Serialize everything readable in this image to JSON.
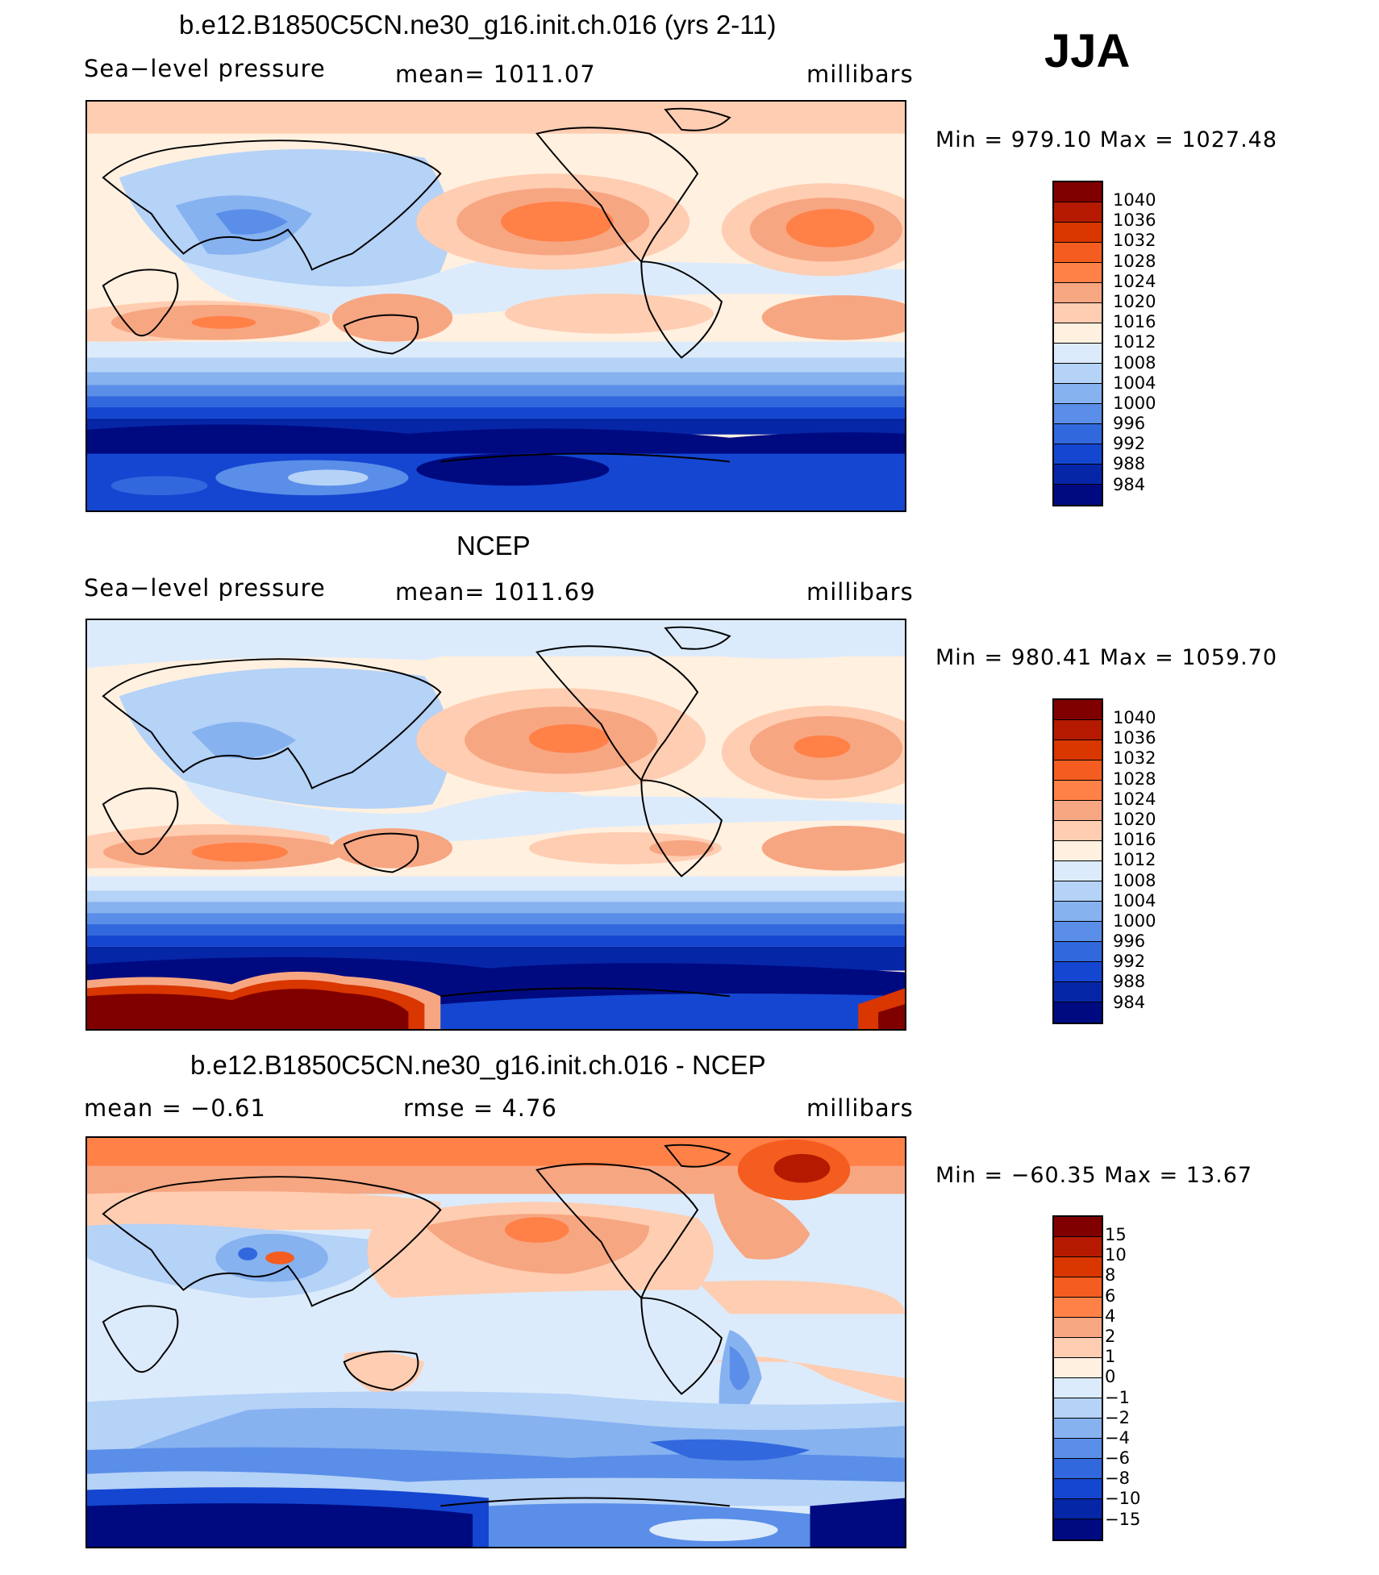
{
  "header": {
    "season": "JJA"
  },
  "panels": [
    {
      "title": "b.e12.B1850C5CN.ne30_g16.init.ch.016 (yrs 2-11)",
      "left_label": "Sea−level pressure",
      "center_label": "mean=  1011.07",
      "units": "millibars",
      "minmax": "Min  =  979.10  Max  =  1027.48"
    },
    {
      "title": "NCEP",
      "left_label": "Sea−level pressure",
      "center_label": "mean=  1011.69",
      "units": "millibars",
      "minmax": "Min  =  980.41  Max  =  1059.70"
    },
    {
      "title": "b.e12.B1850C5CN.ne30_g16.init.ch.016 - NCEP",
      "left_label": "mean  =    −0.61",
      "center_label": "rmse  =     4.76",
      "units": "millibars",
      "minmax": "Min  =  −60.35  Max  =   13.67"
    }
  ],
  "colorbars": {
    "pressure": {
      "labels": [
        "1040",
        "1036",
        "1032",
        "1028",
        "1024",
        "1020",
        "1016",
        "1012",
        "1008",
        "1004",
        "1000",
        "996",
        "992",
        "988",
        "984"
      ],
      "colors": [
        "#800000",
        "#b51a00",
        "#d93600",
        "#f45d1f",
        "#ff8148",
        "#f7a682",
        "#ffcdb1",
        "#fff0e0",
        "#dcebfb",
        "#b5d2f7",
        "#86b2f0",
        "#5a8ee8",
        "#3268dd",
        "#1446d1",
        "#0626a8",
        "#000a80"
      ]
    },
    "difference": {
      "labels": [
        "15",
        "10",
        "8",
        "6",
        "4",
        "2",
        "1",
        "0",
        "−1",
        "−2",
        "−4",
        "−6",
        "−8",
        "−10",
        "−15"
      ],
      "colors": [
        "#800000",
        "#b51a00",
        "#d93600",
        "#f45d1f",
        "#ff8148",
        "#f7a682",
        "#ffcdb1",
        "#fff0e0",
        "#dcebfb",
        "#b5d2f7",
        "#86b2f0",
        "#5a8ee8",
        "#3268dd",
        "#1446d1",
        "#0626a8",
        "#000a80"
      ]
    }
  }
}
